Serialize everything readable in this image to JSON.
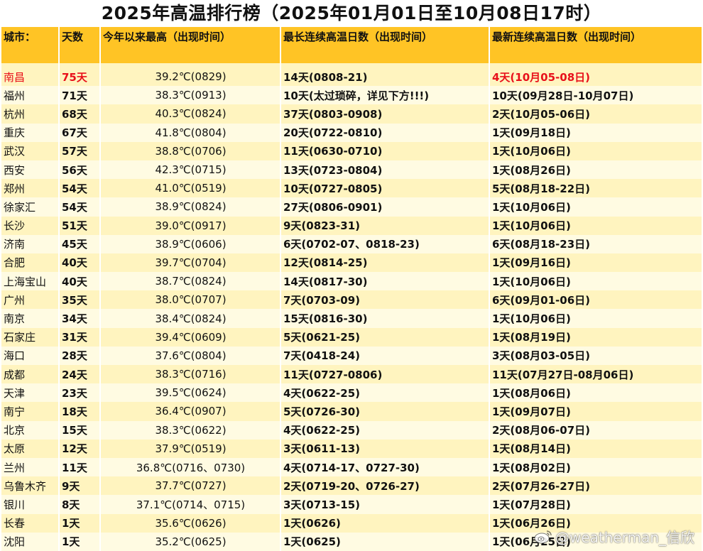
{
  "title": "2025年高温排行榜（2025年01月01日至10月08日17时）",
  "headers": {
    "city": "城市：",
    "days": "天数",
    "max_temp": "今年以来最高（出现时间）",
    "longest_streak": "最长连续高温日数（出现时间）",
    "latest_streak": "最新连续高温日数（出现时间）"
  },
  "highlight_color": "#e8101a",
  "header_color": "#ffc425",
  "rows": [
    {
      "city": "南昌",
      "days": "75天",
      "max_temp": "39.2℃(0829)",
      "longest": "14天(0808-21)",
      "latest": "4天(10月05-08日)"
    },
    {
      "city": "福州",
      "days": "71天",
      "max_temp": "38.3℃(0913)",
      "longest": "10天(太过琐碎，详见下方!!!)",
      "latest": "10天(09月28日-10月07日)"
    },
    {
      "city": "杭州",
      "days": "68天",
      "max_temp": "40.3℃(0824)",
      "longest": "37天(0803-0908)",
      "latest": "2天(10月05-06日)"
    },
    {
      "city": "重庆",
      "days": "67天",
      "max_temp": "41.8℃(0804)",
      "longest": "20天(0722-0810)",
      "latest": "1天(09月18日)"
    },
    {
      "city": "武汉",
      "days": "57天",
      "max_temp": "38.8℃(0706)",
      "longest": "11天(0630-0710)",
      "latest": "1天(10月06日)"
    },
    {
      "city": "西安",
      "days": "56天",
      "max_temp": "42.3℃(0715)",
      "longest": "13天(0723-0804)",
      "latest": "1天(08月26日)"
    },
    {
      "city": "郑州",
      "days": "54天",
      "max_temp": "41.0℃(0519)",
      "longest": "10天(0727-0805)",
      "latest": "5天(08月18-22日)"
    },
    {
      "city": "徐家汇",
      "days": "54天",
      "max_temp": "38.9℃(0824)",
      "longest": "27天(0806-0901)",
      "latest": "1天(10月06日)"
    },
    {
      "city": "长沙",
      "days": "51天",
      "max_temp": "39.0℃(0917)",
      "longest": "9天(0823-31)",
      "latest": "1天(10月06日)"
    },
    {
      "city": "济南",
      "days": "45天",
      "max_temp": "38.9℃(0606)",
      "longest": "6天(0702-07、0818-23)",
      "latest": "6天(08月18-23日)"
    },
    {
      "city": "合肥",
      "days": "40天",
      "max_temp": "39.7℃(0704)",
      "longest": "12天(0814-25)",
      "latest": "1天(09月16日)"
    },
    {
      "city": "上海宝山",
      "days": "40天",
      "max_temp": "38.7℃(0824)",
      "longest": "14天(0817-30)",
      "latest": "1天(10月06日)"
    },
    {
      "city": "广州",
      "days": "35天",
      "max_temp": "38.0℃(0707)",
      "longest": "7天(0703-09)",
      "latest": "6天(09月01-06日)"
    },
    {
      "city": "南京",
      "days": "34天",
      "max_temp": "38.4℃(0824)",
      "longest": "15天(0816-30)",
      "latest": "1天(10月06日)"
    },
    {
      "city": "石家庄",
      "days": "31天",
      "max_temp": "39.4℃(0609)",
      "longest": "5天(0621-25)",
      "latest": "1天(08月19日)"
    },
    {
      "city": "海口",
      "days": "28天",
      "max_temp": "37.6℃(0804)",
      "longest": "7天(0418-24)",
      "latest": "3天(08月03-05日)"
    },
    {
      "city": "成都",
      "days": "24天",
      "max_temp": "38.3℃(0716)",
      "longest": "11天(0727-0806)",
      "latest": "11天(07月27日-08月06日)"
    },
    {
      "city": "天津",
      "days": "23天",
      "max_temp": "39.5℃(0624)",
      "longest": "4天(0622-25)",
      "latest": "1天(08月06日)"
    },
    {
      "city": "南宁",
      "days": "18天",
      "max_temp": "36.4℃(0907)",
      "longest": "5天(0726-30)",
      "latest": "1天(09月07日)"
    },
    {
      "city": "北京",
      "days": "15天",
      "max_temp": "38.3℃(0622)",
      "longest": "4天(0622-25)",
      "latest": "2天(08月06-07日)"
    },
    {
      "city": "太原",
      "days": "12天",
      "max_temp": "37.9℃(0519)",
      "longest": "3天(0611-13)",
      "latest": "1天(08月14日)"
    },
    {
      "city": "兰州",
      "days": "11天",
      "max_temp": "36.8℃(0716、0730)",
      "longest": "4天(0714-17、0727-30)",
      "latest": "1天(08月02日)"
    },
    {
      "city": "乌鲁木齐",
      "days": "9天",
      "max_temp": "37.7℃(0727)",
      "longest": "2天(0719-20、0726-27)",
      "latest": "2天(07月26-27日)"
    },
    {
      "city": "银川",
      "days": "8天",
      "max_temp": "37.1℃(0714、0715)",
      "longest": "3天(0713-15)",
      "latest": "1天(07月28日)"
    },
    {
      "city": "长春",
      "days": "1天",
      "max_temp": "35.6℃(0626)",
      "longest": "1天(0626)",
      "latest": "1天(06月26日)"
    },
    {
      "city": "沈阳",
      "days": "1天",
      "max_temp": "35.2℃(0625)",
      "longest": "1天(0625)",
      "latest": "1天(06月25日)"
    }
  ],
  "watermark": {
    "text": "@weatherman_信欣",
    "icon": "weibo-icon"
  }
}
